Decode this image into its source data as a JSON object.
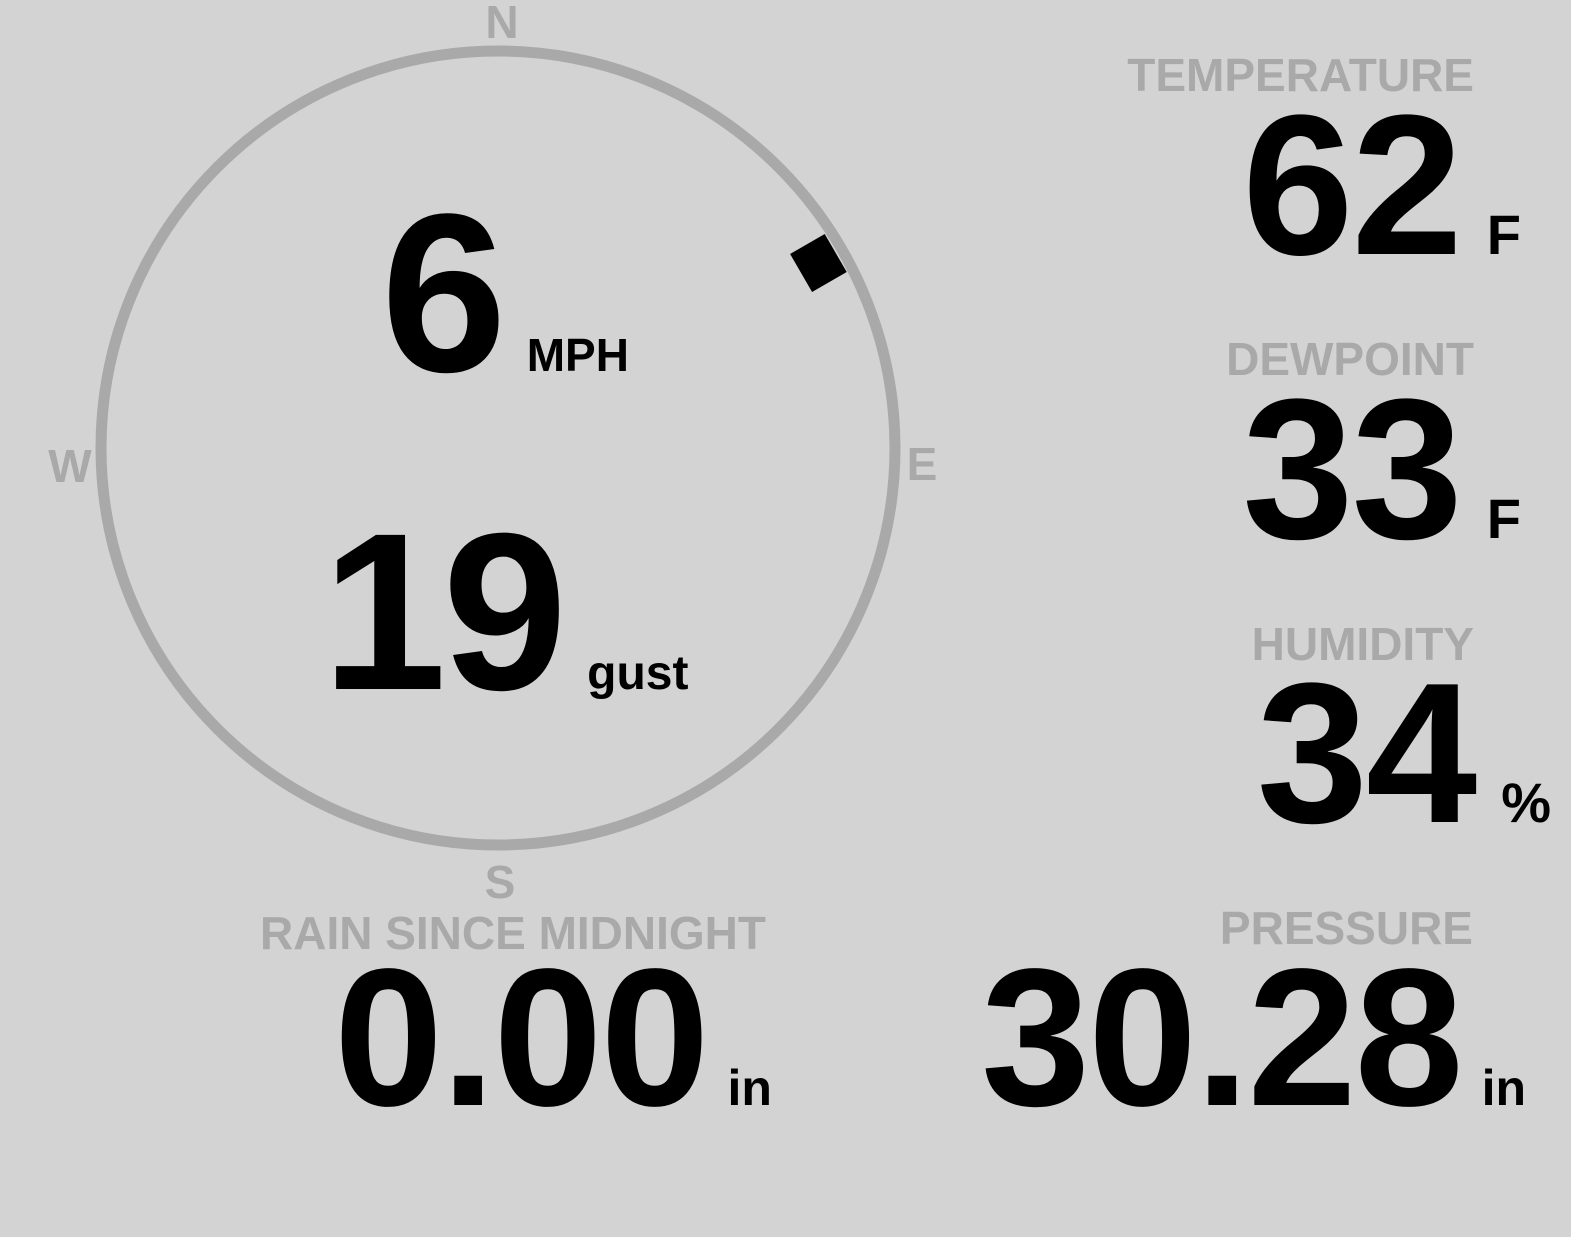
{
  "wind": {
    "speed": "6",
    "speed_unit": "MPH",
    "gust": "19",
    "gust_unit": "gust",
    "direction_deg": 60,
    "compass": {
      "n": "N",
      "e": "E",
      "s": "S",
      "w": "W"
    }
  },
  "temperature": {
    "label": "TEMPERATURE",
    "value": "62",
    "unit": "F"
  },
  "dewpoint": {
    "label": "DEWPOINT",
    "value": "33",
    "unit": "F"
  },
  "humidity": {
    "label": "HUMIDITY",
    "value": "34",
    "unit": "%"
  },
  "rain": {
    "label": "RAIN SINCE MIDNIGHT",
    "value": "0.00",
    "unit": "in"
  },
  "pressure": {
    "label": "PRESSURE",
    "value": "30.28",
    "unit": "in"
  },
  "colors": {
    "background": "#d3d3d3",
    "label": "#a9a9a9",
    "ring": "#a9a9a9",
    "value": "#000000"
  }
}
